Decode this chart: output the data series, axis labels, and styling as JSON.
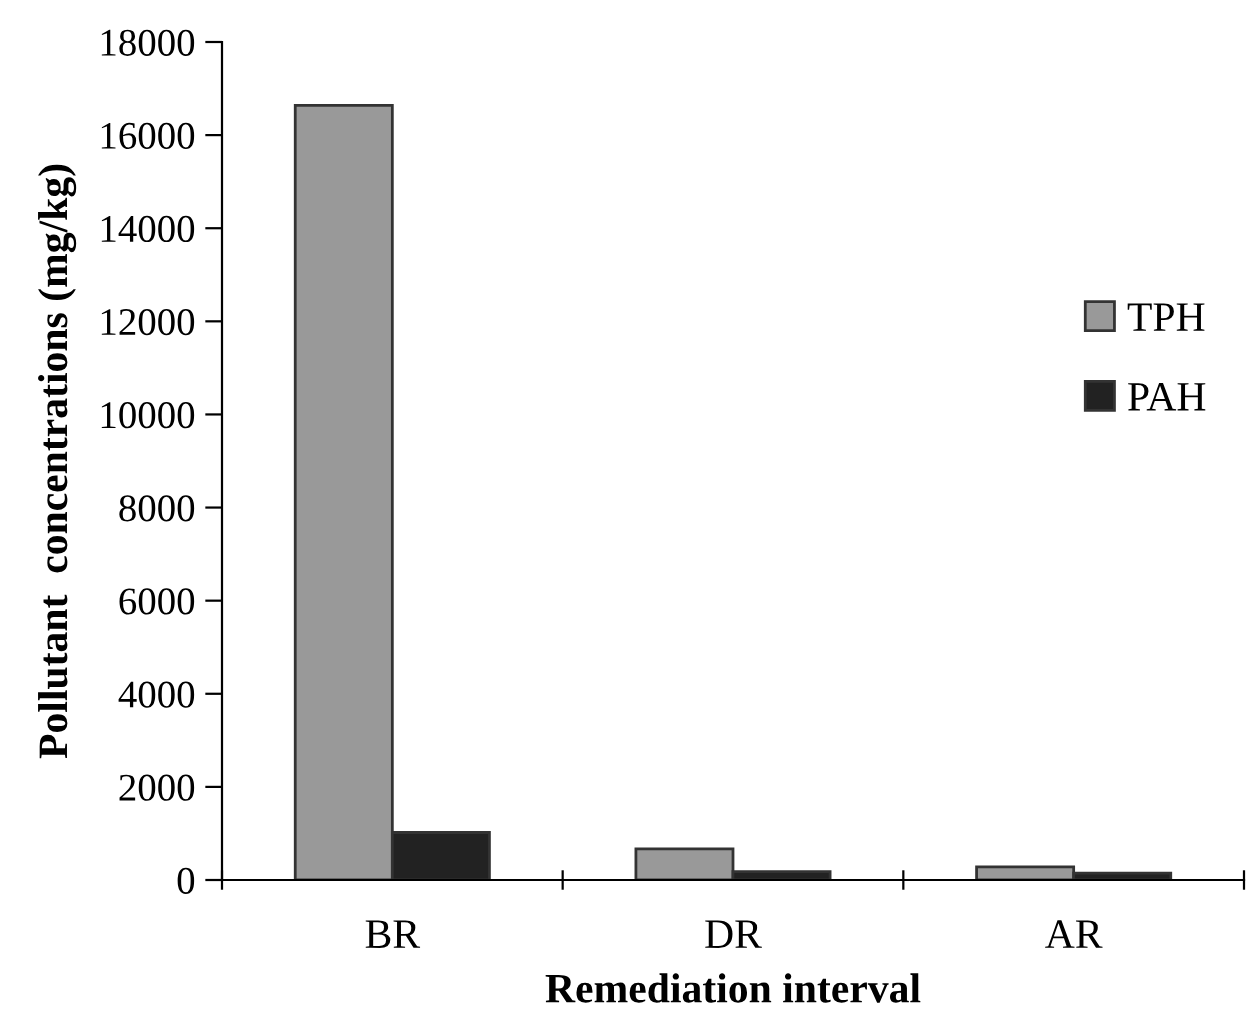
{
  "chart_data": {
    "type": "bar",
    "xlabel": "Remediation interval",
    "ylabel": "Pollutant  concentrations (mg/kg)",
    "categories": [
      "BR",
      "DR",
      "AR"
    ],
    "series": [
      {
        "name": "TPH",
        "color": "#999999",
        "values": [
          16640,
          670,
          280
        ]
      },
      {
        "name": "PAH",
        "color": "#222222",
        "values": [
          1020,
          180,
          150
        ]
      }
    ],
    "ylim": [
      0,
      18000
    ],
    "yticks": [
      0,
      2000,
      4000,
      6000,
      8000,
      10000,
      12000,
      14000,
      16000,
      18000
    ],
    "grid": false,
    "legend": "right"
  }
}
